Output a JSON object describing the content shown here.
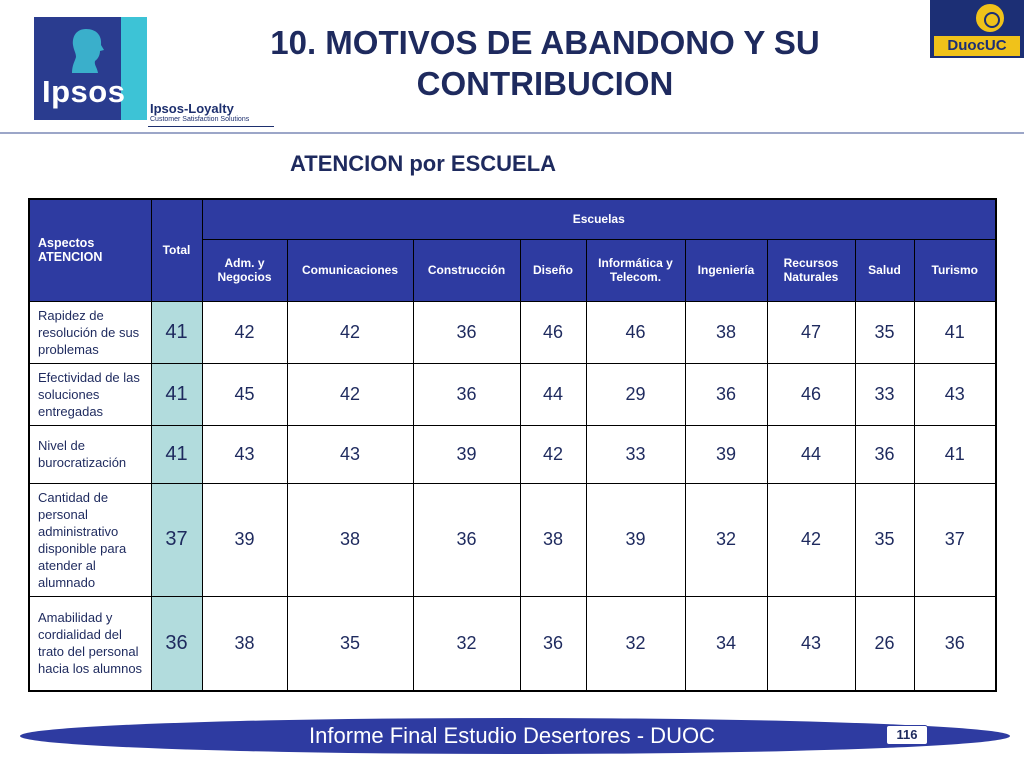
{
  "header": {
    "title_line1": "10. MOTIVOS DE ABANDONO Y SU",
    "title_line2": "CONTRIBUCION",
    "subtitle": "ATENCION por ESCUELA"
  },
  "logos": {
    "left_brand": "Ipsos",
    "left_tagline": "Ipsos-Loyalty",
    "left_subtag": "Customer Satisfaction Solutions",
    "right_brand": "DuocUC"
  },
  "table": {
    "corner_header": "Aspectos ATENCION",
    "total_header": "Total",
    "group_header": "Escuelas",
    "schools": [
      "Adm. y Negocios",
      "Comunicaciones",
      "Construcción",
      "Diseño",
      "Informática y Telecom.",
      "Ingeniería",
      "Recursos Naturales",
      "Salud",
      "Turismo"
    ],
    "rows": [
      {
        "aspect": "Rapidez de resolución de sus problemas",
        "total": "41",
        "values": [
          "42",
          "42",
          "36",
          "46",
          "46",
          "38",
          "47",
          "35",
          "41"
        ]
      },
      {
        "aspect": "Efectividad de las soluciones entregadas",
        "total": "41",
        "values": [
          "45",
          "42",
          "36",
          "44",
          "29",
          "36",
          "46",
          "33",
          "43"
        ]
      },
      {
        "aspect": "Nivel de burocratización",
        "total": "41",
        "values": [
          "43",
          "43",
          "39",
          "42",
          "33",
          "39",
          "44",
          "36",
          "41"
        ]
      },
      {
        "aspect": "Cantidad de personal administrativo disponible para atender al alumnado",
        "total": "37",
        "values": [
          "39",
          "38",
          "36",
          "38",
          "39",
          "32",
          "42",
          "35",
          "37"
        ]
      },
      {
        "aspect": "Amabilidad y cordialidad del trato del personal hacia los alumnos",
        "total": "36",
        "values": [
          "38",
          "35",
          "32",
          "36",
          "32",
          "34",
          "43",
          "26",
          "36"
        ]
      }
    ]
  },
  "footer": {
    "text": "Informe Final Estudio Desertores - DUOC",
    "page_number": "116"
  },
  "colors": {
    "header_fill": "#2e3ba1",
    "total_fill": "#b2dcdd",
    "title_text": "#1e2a5e"
  }
}
